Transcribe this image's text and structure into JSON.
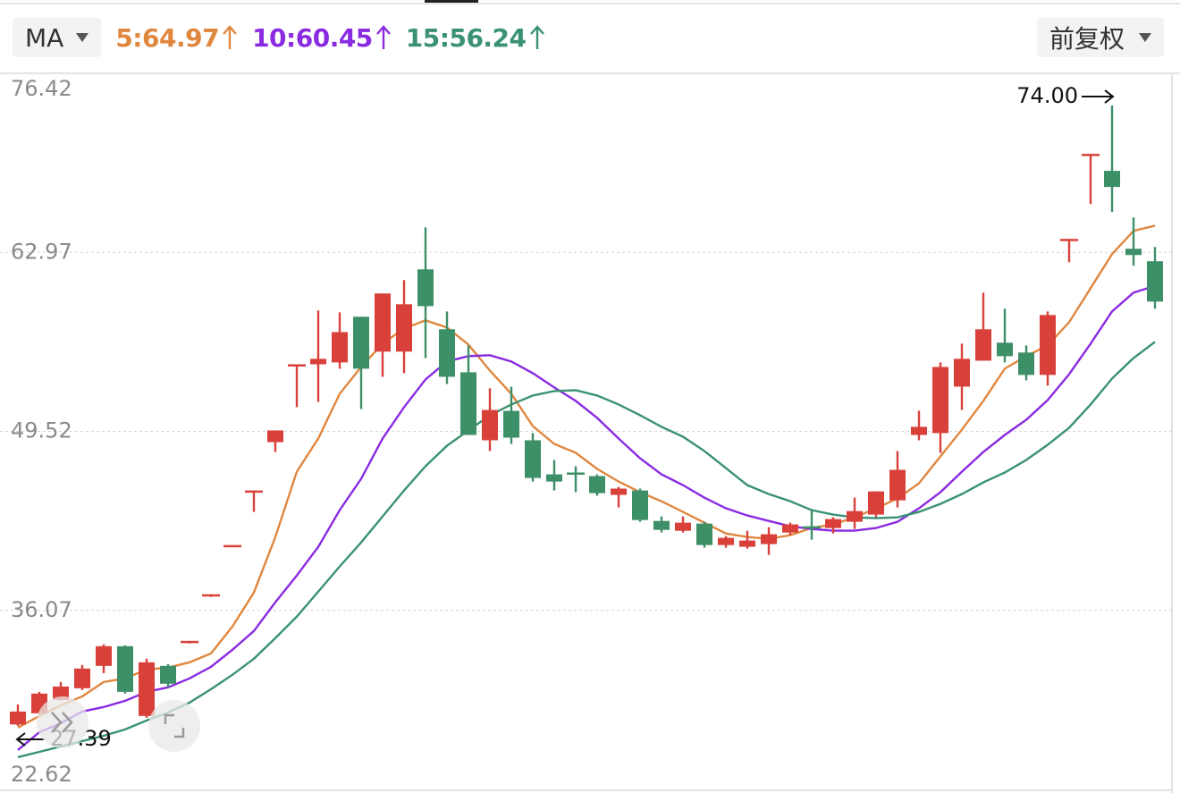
{
  "chart_data": {
    "type": "candlestick",
    "indicator_label": "MA",
    "adjust_label": "前复权",
    "up_color": "#d9403a",
    "down_color": "#3d8f67",
    "ylim": [
      22.62,
      76.42
    ],
    "yticks": [
      {
        "value": 22.62,
        "label": "22.62"
      },
      {
        "value": 36.07,
        "label": "36.07"
      },
      {
        "value": 49.52,
        "label": "49.52"
      },
      {
        "value": 62.97,
        "label": "62.97"
      },
      {
        "value": 76.42,
        "label": "76.42"
      }
    ],
    "grid": true,
    "open": [
      27.5,
      28.34,
      29.34,
      30.22,
      31.9,
      33.38,
      28.14,
      31.9,
      33.78,
      37.28,
      40.98,
      45.08,
      48.71,
      54.43,
      54.56,
      54.7,
      58.13,
      55.51,
      55.51,
      61.69,
      57.19,
      53.96,
      48.85,
      51.06,
      48.85,
      46.29,
      46.43,
      46.16,
      44.75,
      45.08,
      42.79,
      42.05,
      42.59,
      40.98,
      40.85,
      41.05,
      41.92,
      42.39,
      42.26,
      42.73,
      43.27,
      44.34,
      49.25,
      49.39,
      52.88,
      54.83,
      56.18,
      55.44,
      53.76,
      63.98,
      70.37,
      69.09,
      63.24,
      62.3
    ],
    "high": [
      29.01,
      29.95,
      30.69,
      31.97,
      33.51,
      33.45,
      32.44,
      32.04,
      33.78,
      37.28,
      40.98,
      45.08,
      49.59,
      54.56,
      58.6,
      58.46,
      58.13,
      59.88,
      60.89,
      64.85,
      58.53,
      55.98,
      52.75,
      52.88,
      49.39,
      47.37,
      46.9,
      46.29,
      45.35,
      45.22,
      43.13,
      43.13,
      42.73,
      41.65,
      42.05,
      42.32,
      42.66,
      43.67,
      43.07,
      44.54,
      45.01,
      48.04,
      51.07,
      54.7,
      56.11,
      59.94,
      58.73,
      55.98,
      58.53,
      63.98,
      70.37,
      74.0,
      65.59,
      63.37
    ],
    "low": [
      27.39,
      28.27,
      29.28,
      30.09,
      31.36,
      29.82,
      28.0,
      30.29,
      33.58,
      37.08,
      40.85,
      43.47,
      47.97,
      51.34,
      51.74,
      54.23,
      51.2,
      53.62,
      53.89,
      55.03,
      53.08,
      49.25,
      48.04,
      48.58,
      45.75,
      45.08,
      44.95,
      44.68,
      43.8,
      42.73,
      41.92,
      41.92,
      40.78,
      40.78,
      40.71,
      40.24,
      41.72,
      41.38,
      41.85,
      42.19,
      43.07,
      43.8,
      48.85,
      47.91,
      51.13,
      54.83,
      54.7,
      53.35,
      52.95,
      62.23,
      66.6,
      66.0,
      61.96,
      58.73
    ],
    "close": [
      28.47,
      29.82,
      30.35,
      31.7,
      33.38,
      29.95,
      32.17,
      30.56,
      33.78,
      37.28,
      40.98,
      45.08,
      49.59,
      54.56,
      54.97,
      56.98,
      54.23,
      59.88,
      59.07,
      58.93,
      53.62,
      49.25,
      51.13,
      49.05,
      46.02,
      45.75,
      46.29,
      44.88,
      45.22,
      42.86,
      42.12,
      42.66,
      40.98,
      41.52,
      41.32,
      41.79,
      42.53,
      42.26,
      42.93,
      43.53,
      45.01,
      46.63,
      49.86,
      54.36,
      54.97,
      57.19,
      55.17,
      53.76,
      58.26,
      63.98,
      70.37,
      67.88,
      62.77,
      59.27
    ],
    "series": [
      {
        "name": "5:64.97",
        "color": "#e0873f",
        "values": [
          27.26,
          28.13,
          28.94,
          29.61,
          30.69,
          30.96,
          31.63,
          31.77,
          32.17,
          32.84,
          34.86,
          37.41,
          41.58,
          46.49,
          48.98,
          52.34,
          54.36,
          56.11,
          57.25,
          57.86,
          57.32,
          56.04,
          54.09,
          52.34,
          49.92,
          48.58,
          47.91,
          46.7,
          45.75,
          44.95,
          44.27,
          43.47,
          42.66,
          41.85,
          41.58,
          41.45,
          41.72,
          42.26,
          42.53,
          43.06,
          43.74,
          44.48,
          45.62,
          47.64,
          49.65,
          51.81,
          54.23,
          55.17,
          55.98,
          57.72,
          60.28,
          62.84,
          64.58,
          64.97
        ]
      },
      {
        "name": "10:60.45",
        "color": "#8a2be2",
        "values": [
          25.58,
          26.92,
          27.6,
          28.47,
          28.81,
          29.28,
          29.95,
          30.29,
          30.96,
          31.83,
          33.11,
          34.52,
          36.68,
          38.69,
          40.84,
          43.6,
          45.96,
          48.98,
          51.34,
          53.42,
          54.77,
          55.17,
          55.24,
          54.77,
          53.89,
          52.82,
          51.81,
          50.53,
          48.98,
          47.5,
          46.29,
          45.48,
          44.54,
          43.74,
          43.2,
          42.79,
          42.39,
          42.19,
          42.06,
          42.06,
          42.26,
          42.73,
          43.74,
          44.95,
          46.49,
          47.97,
          49.25,
          50.39,
          51.87,
          53.82,
          56.11,
          58.53,
          59.94,
          60.45
        ]
      },
      {
        "name": "15:56.24",
        "color": "#3a9272",
        "values": [
          25.04,
          25.44,
          25.85,
          26.25,
          26.65,
          27.13,
          27.8,
          28.4,
          29.14,
          30.15,
          31.23,
          32.44,
          33.99,
          35.6,
          37.48,
          39.37,
          41.18,
          43.13,
          45.08,
          46.9,
          48.44,
          49.59,
          50.73,
          51.54,
          52.21,
          52.55,
          52.61,
          52.21,
          51.54,
          50.73,
          49.86,
          49.12,
          48.04,
          46.76,
          45.48,
          44.81,
          44.27,
          43.6,
          43.27,
          43.06,
          43.0,
          43.06,
          43.47,
          44.07,
          44.81,
          45.69,
          46.43,
          47.37,
          48.51,
          49.79,
          51.54,
          53.49,
          55.03,
          56.24
        ]
      }
    ],
    "annotations": [
      {
        "value": 74.0,
        "label": "74.00"
      },
      {
        "value": 27.39,
        "label": "27.39"
      }
    ]
  }
}
